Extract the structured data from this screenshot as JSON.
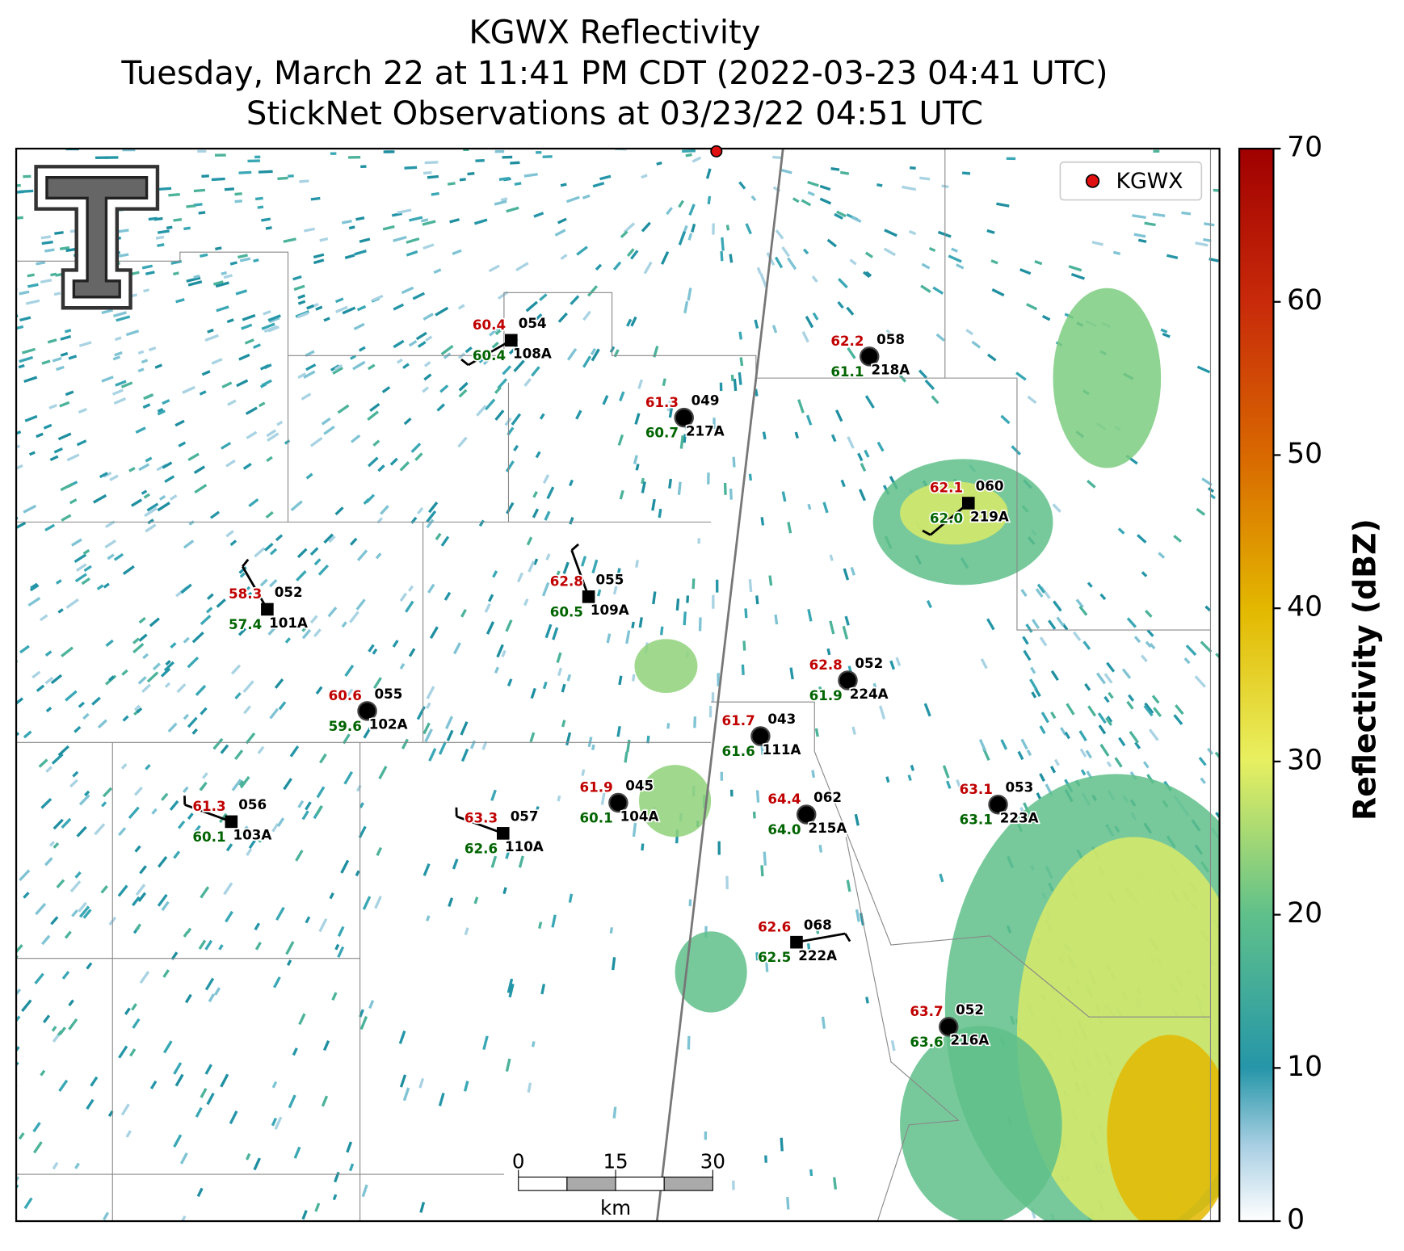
{
  "title_lines": [
    "KGWX Reflectivity",
    "Tuesday, March 22 at 11:41 PM CDT (2022-03-23 04:41 UTC)",
    "StickNet Observations at 03/23/22 04:51 UTC"
  ],
  "legend": {
    "label": "KGWX"
  },
  "colorbar": {
    "label": "Reflectivity (dBZ)",
    "lim": [
      0,
      70
    ],
    "ticks": [
      0,
      10,
      20,
      30,
      40,
      50,
      60,
      70
    ]
  },
  "scale_bar": {
    "ticks": [
      0,
      15,
      30
    ],
    "unit": "km"
  },
  "stations": [
    {
      "id": "108A",
      "code": "054",
      "temp": "60.4",
      "dewpoint": "60.4"
    },
    {
      "id": "218A",
      "code": "058",
      "temp": "62.2",
      "dewpoint": "61.1"
    },
    {
      "id": "217A",
      "code": "049",
      "temp": "61.3",
      "dewpoint": "60.7"
    },
    {
      "id": "219A",
      "code": "060",
      "temp": "62.1",
      "dewpoint": "62.0"
    },
    {
      "id": "101A",
      "code": "052",
      "temp": "58.3",
      "dewpoint": "57.4"
    },
    {
      "id": "109A",
      "code": "055",
      "temp": "62.8",
      "dewpoint": "60.5"
    },
    {
      "id": "224A",
      "code": "052",
      "temp": "62.8",
      "dewpoint": "61.9"
    },
    {
      "id": "102A",
      "code": "055",
      "temp": "60.6",
      "dewpoint": "59.6"
    },
    {
      "id": "111A",
      "code": "043",
      "temp": "61.7",
      "dewpoint": "61.6"
    },
    {
      "id": "103A",
      "code": "056",
      "temp": "61.3",
      "dewpoint": "60.1"
    },
    {
      "id": "104A",
      "code": "045",
      "temp": "61.9",
      "dewpoint": "60.1"
    },
    {
      "id": "215A",
      "code": "062",
      "temp": "64.4",
      "dewpoint": "64.0"
    },
    {
      "id": "223A",
      "code": "053",
      "temp": "63.1",
      "dewpoint": "63.1"
    },
    {
      "id": "110A",
      "code": "057",
      "temp": "63.3",
      "dewpoint": "62.6"
    },
    {
      "id": "222A",
      "code": "068",
      "temp": "62.6",
      "dewpoint": "62.5"
    },
    {
      "id": "216A",
      "code": "052",
      "temp": "63.7",
      "dewpoint": "63.6"
    }
  ]
}
